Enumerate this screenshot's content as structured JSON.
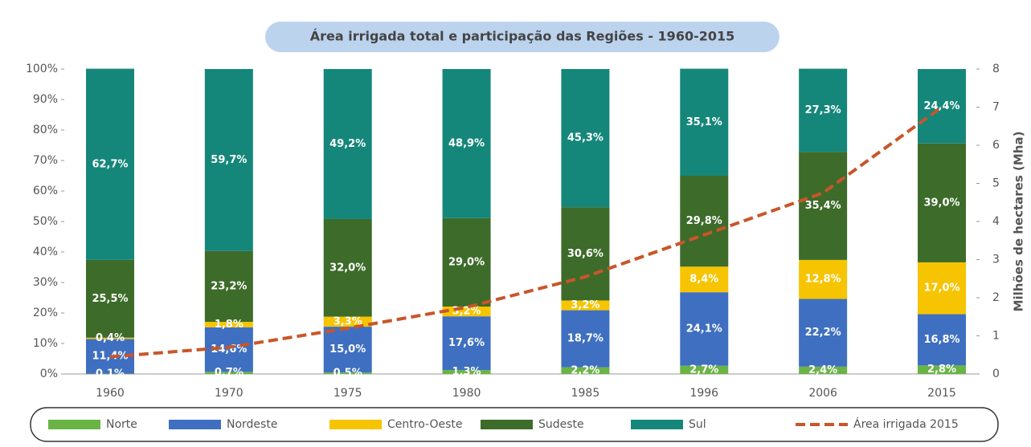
{
  "chart_data": {
    "type": "bar",
    "stacked": true,
    "title": "Área irrigada total e participação das Regiões - 1960-2015",
    "y2_label": "Milhões de hectares (Mha)",
    "categories": [
      "1960",
      "1970",
      "1975",
      "1980",
      "1985",
      "1996",
      "2006",
      "2015"
    ],
    "series": [
      {
        "name": "Norte",
        "color": "#6ab446",
        "values": [
          0.1,
          0.7,
          0.5,
          1.3,
          2.2,
          2.7,
          2.4,
          2.8
        ],
        "value_labels": [
          "0,1%",
          "0,7%",
          "0,5%",
          "1,3%",
          "2,2%",
          "2,7%",
          "2,4%",
          "2,8%"
        ]
      },
      {
        "name": "Nordeste",
        "color": "#3f6fc0",
        "values": [
          11.4,
          14.6,
          15.0,
          17.6,
          18.7,
          24.1,
          22.2,
          16.8
        ],
        "value_labels": [
          "11,4%",
          "14,6%",
          "15,0%",
          "17,6%",
          "18,7%",
          "24,1%",
          "22,2%",
          "16,8%"
        ]
      },
      {
        "name": "Centro-Oeste",
        "color": "#f6c400",
        "values": [
          0.4,
          1.8,
          3.3,
          3.2,
          3.2,
          8.4,
          12.8,
          17.0
        ],
        "value_labels": [
          "0,4%",
          "1,8%",
          "3,3%",
          "3,2%",
          "3,2%",
          "8,4%",
          "12,8%",
          "17,0%"
        ]
      },
      {
        "name": "Sudeste",
        "color": "#3d6b2a",
        "values": [
          25.5,
          23.2,
          32.0,
          29.0,
          30.6,
          29.8,
          35.4,
          39.0
        ],
        "value_labels": [
          "25,5%",
          "23,2%",
          "32,0%",
          "29,0%",
          "30,6%",
          "29,8%",
          "35,4%",
          "39,0%"
        ]
      },
      {
        "name": "Sul",
        "color": "#15877a",
        "values": [
          62.7,
          59.7,
          49.2,
          48.9,
          45.3,
          35.1,
          27.3,
          24.4
        ],
        "value_labels": [
          "62,7%",
          "59,7%",
          "49,2%",
          "48,9%",
          "45,3%",
          "35,1%",
          "27,3%",
          "24,4%"
        ]
      },
      {
        "name": "Área irrigada 2015",
        "type": "line",
        "axis": "y2",
        "color": "#c8562a",
        "dashed": true,
        "values": [
          0.45,
          0.7,
          1.2,
          1.75,
          2.55,
          3.65,
          4.75,
          7.0
        ]
      }
    ],
    "ylim": [
      0,
      100
    ],
    "yticks": [
      {
        "value": 0,
        "label": "0%"
      },
      {
        "value": 10,
        "label": "10%"
      },
      {
        "value": 20,
        "label": "20%"
      },
      {
        "value": 30,
        "label": "30%"
      },
      {
        "value": 40,
        "label": "40%"
      },
      {
        "value": 50,
        "label": "50%"
      },
      {
        "value": 60,
        "label": "60%"
      },
      {
        "value": 70,
        "label": "70%"
      },
      {
        "value": 80,
        "label": "80%"
      },
      {
        "value": 90,
        "label": "90%"
      },
      {
        "value": 100,
        "label": "100%"
      }
    ],
    "y2lim": [
      0,
      8
    ],
    "y2ticks": [
      0,
      1,
      2,
      3,
      4,
      5,
      6,
      7,
      8
    ]
  }
}
